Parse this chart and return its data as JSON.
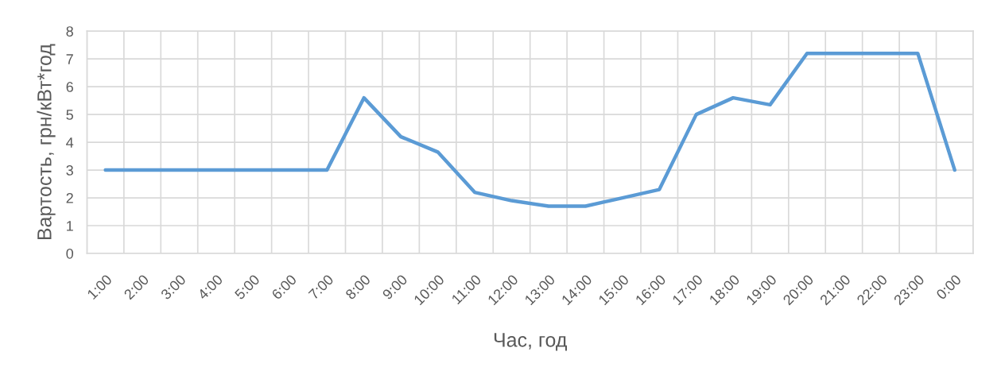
{
  "chart_data": {
    "type": "line",
    "xlabel": "Час, год",
    "ylabel": "Вартость, грн/кВт*год",
    "categories": [
      "1:00",
      "2:00",
      "3:00",
      "4:00",
      "5:00",
      "6:00",
      "7:00",
      "8:00",
      "9:00",
      "10:00",
      "11:00",
      "12:00",
      "13:00",
      "14:00",
      "15:00",
      "16:00",
      "17:00",
      "18:00",
      "19:00",
      "20:00",
      "21:00",
      "22:00",
      "23:00",
      "0:00"
    ],
    "series": [
      {
        "color": "#5b9bd5",
        "values": [
          3,
          3,
          3,
          3,
          3,
          3,
          3,
          5.6,
          4.2,
          3.65,
          2.2,
          1.9,
          1.7,
          1.7,
          2.0,
          2.3,
          5.0,
          5.6,
          5.35,
          7.2,
          7.2,
          7.2,
          7.2,
          3.0
        ]
      }
    ],
    "ylim": [
      0,
      8
    ],
    "yticks": [
      0,
      1,
      2,
      3,
      4,
      5,
      6,
      7,
      8
    ],
    "grid": true
  }
}
